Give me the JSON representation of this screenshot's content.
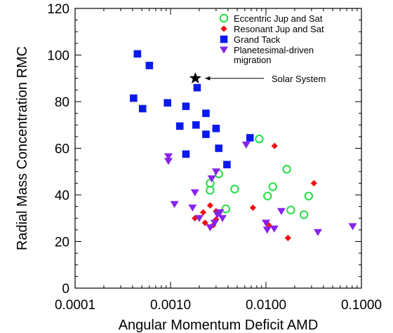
{
  "chart_data": {
    "type": "scatter",
    "xlabel": "Angular Momentum Deficit AMD",
    "ylabel": "Radial Mass Concentration RMC",
    "x_scale": "log",
    "xlim": [
      0.0001,
      0.1
    ],
    "ylim": [
      0,
      120
    ],
    "x_ticks": [
      "0.0001",
      "0.0010",
      "0.0100",
      "0.1000"
    ],
    "y_ticks": [
      "0",
      "20",
      "40",
      "60",
      "80",
      "100",
      "120"
    ],
    "legend_position": "top-right",
    "series": [
      {
        "name": "Eccentric Jup and Sat",
        "marker": "open-circle",
        "color": "#22dd44",
        "points": [
          [
            0.0085,
            64
          ],
          [
            0.0165,
            51
          ],
          [
            0.0032,
            49
          ],
          [
            0.0026,
            45
          ],
          [
            0.0026,
            42
          ],
          [
            0.0047,
            42.5
          ],
          [
            0.0118,
            43.5
          ],
          [
            0.0104,
            39.5
          ],
          [
            0.028,
            39.5
          ],
          [
            0.0038,
            34
          ],
          [
            0.0182,
            33.5
          ],
          [
            0.025,
            31.5
          ]
        ]
      },
      {
        "name": "Resonant Jup and Sat",
        "marker": "diamond",
        "color": "#ee1111",
        "points": [
          [
            0.0123,
            61
          ],
          [
            0.0318,
            45
          ],
          [
            0.0026,
            35.5
          ],
          [
            0.0022,
            32.5
          ],
          [
            0.003,
            33
          ],
          [
            0.0018,
            30
          ],
          [
            0.003,
            29.5
          ],
          [
            0.0023,
            28
          ],
          [
            0.0028,
            27
          ],
          [
            0.0073,
            34.5
          ],
          [
            0.0107,
            27
          ],
          [
            0.017,
            21.5
          ]
        ]
      },
      {
        "name": "Grand Tack",
        "marker": "square",
        "color": "#0a1aee",
        "points": [
          [
            0.00045,
            100.5
          ],
          [
            0.0006,
            95.5
          ],
          [
            0.00041,
            81.5
          ],
          [
            0.00051,
            77
          ],
          [
            0.00093,
            79.5
          ],
          [
            0.00145,
            78
          ],
          [
            0.0019,
            86
          ],
          [
            0.00235,
            75
          ],
          [
            0.00125,
            69.5
          ],
          [
            0.00185,
            70
          ],
          [
            0.003,
            68.5
          ],
          [
            0.00235,
            66
          ],
          [
            0.0068,
            64.5
          ],
          [
            0.0032,
            60
          ],
          [
            0.00145,
            57.5
          ],
          [
            0.0039,
            53
          ]
        ]
      },
      {
        "name": "Planetesimal-driven migration",
        "marker": "triangle-down",
        "color": "#8822ee",
        "points": [
          [
            0.00095,
            56.5
          ],
          [
            0.00095,
            54.5
          ],
          [
            0.0062,
            61.5
          ],
          [
            0.003,
            50
          ],
          [
            0.0027,
            47
          ],
          [
            0.0018,
            41
          ],
          [
            0.0011,
            36
          ],
          [
            0.0017,
            34.5
          ],
          [
            0.0033,
            32.5
          ],
          [
            0.0031,
            31.5
          ],
          [
            0.0035,
            30
          ],
          [
            0.0029,
            28
          ],
          [
            0.0026,
            26
          ],
          [
            0.01,
            28
          ],
          [
            0.0103,
            25
          ],
          [
            0.0122,
            25.5
          ],
          [
            0.0145,
            33
          ],
          [
            0.035,
            24
          ],
          [
            0.081,
            26.5
          ],
          [
            0.002,
            30
          ]
        ]
      }
    ],
    "annotations": [
      {
        "label": "Solar System",
        "marker": "star",
        "x": 0.00182,
        "y": 90
      }
    ]
  }
}
